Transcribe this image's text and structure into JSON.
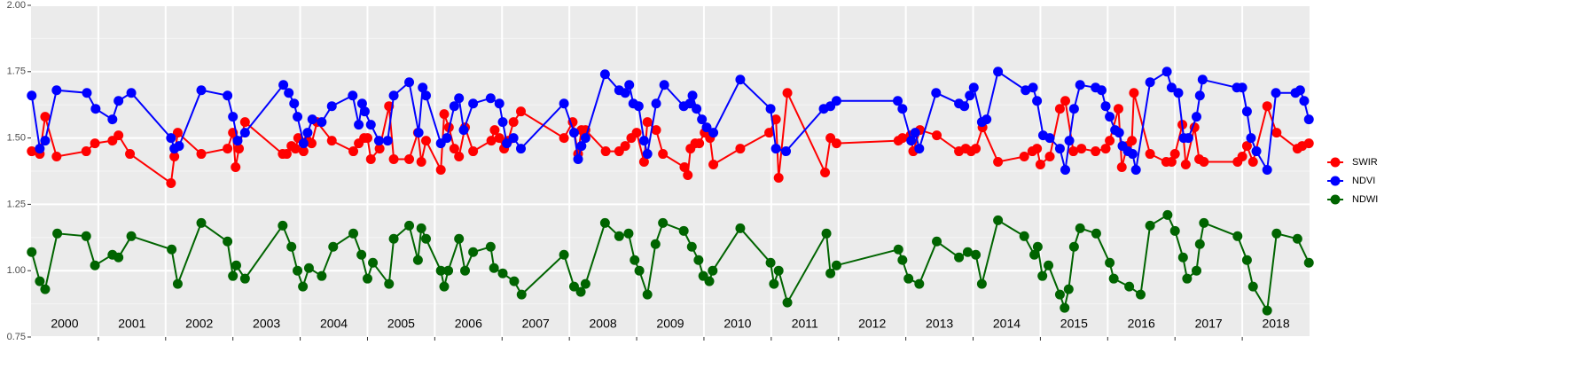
{
  "chart_data": {
    "type": "line",
    "categories": [
      "2000",
      "2001",
      "2002",
      "2003",
      "2004",
      "2005",
      "2006",
      "2007",
      "2008",
      "2009",
      "2010",
      "2011",
      "2012",
      "2013",
      "2014",
      "2015",
      "2016",
      "2017",
      "2018"
    ],
    "xlim": [
      2000,
      2019
    ],
    "xticks": [
      2001,
      2002,
      2003,
      2004,
      2005,
      2006,
      2007,
      2008,
      2009,
      2010,
      2011,
      2012,
      2013,
      2014,
      2015,
      2016,
      2017,
      2018
    ],
    "ylim": [
      0.75,
      2
    ],
    "yticks": [
      0.75,
      {
        "value": 1,
        "label": "1.00"
      },
      1.25,
      {
        "value": 1.5,
        "label": "1.50"
      },
      1.75,
      {
        "value": 2,
        "label": "2.00"
      }
    ],
    "grid": true,
    "legend": "right",
    "series": [
      {
        "name": "SWIR",
        "color": "#ff0000",
        "x": [
          2000.01,
          2000.13,
          2000.21,
          2000.38,
          2000.82,
          2000.95,
          2001.21,
          2001.3,
          2001.47,
          2002.08,
          2002.13,
          2002.18,
          2002.53,
          2002.92,
          2003.0,
          2003.04,
          2003.09,
          2003.18,
          2003.74,
          2003.8,
          2003.87,
          2003.93,
          2003.97,
          2004.05,
          2004.11,
          2004.17,
          2004.25,
          2004.47,
          2004.79,
          2004.87,
          2004.95,
          2005.0,
          2005.05,
          2005.18,
          2005.32,
          2005.39,
          2005.62,
          2005.75,
          2005.8,
          2005.87,
          2006.09,
          2006.14,
          2006.21,
          2006.29,
          2006.36,
          2006.45,
          2006.57,
          2006.84,
          2006.89,
          2006.96,
          2007.03,
          2007.09,
          2007.17,
          2007.28,
          2007.92,
          2008.05,
          2008.13,
          2008.18,
          2008.24,
          2008.54,
          2008.74,
          2008.83,
          2008.92,
          2009.0,
          2009.11,
          2009.16,
          2009.29,
          2009.39,
          2009.71,
          2009.76,
          2009.8,
          2009.87,
          2009.93,
          2010.01,
          2010.09,
          2010.14,
          2010.54,
          2010.97,
          2011.07,
          2011.11,
          2011.24,
          2011.8,
          2011.88,
          2011.97,
          2012.89,
          2012.95,
          2013.07,
          2013.11,
          2013.21,
          2013.46,
          2013.79,
          2013.89,
          2013.97,
          2014.04,
          2014.14,
          2014.37,
          2014.76,
          2014.88,
          2014.95,
          2015.0,
          2015.14,
          2015.29,
          2015.37,
          2015.49,
          2015.61,
          2015.82,
          2015.97,
          2016.03,
          2016.16,
          2016.21,
          2016.29,
          2016.36,
          2016.39,
          2016.63,
          2016.87,
          2016.95,
          2017.0,
          2017.11,
          2017.16,
          2017.29,
          2017.36,
          2017.43,
          2017.93,
          2018.0,
          2018.07,
          2018.16,
          2018.37,
          2018.51,
          2018.82,
          2018.89,
          2018.99
        ],
        "values": [
          1.45,
          1.44,
          1.58,
          1.43,
          1.45,
          1.48,
          1.49,
          1.51,
          1.44,
          1.33,
          1.43,
          1.52,
          1.44,
          1.46,
          1.52,
          1.39,
          1.46,
          1.56,
          1.44,
          1.44,
          1.47,
          1.46,
          1.5,
          1.45,
          1.49,
          1.48,
          1.56,
          1.49,
          1.45,
          1.48,
          1.5,
          1.5,
          1.42,
          1.46,
          1.62,
          1.42,
          1.42,
          1.52,
          1.41,
          1.49,
          1.38,
          1.59,
          1.54,
          1.46,
          1.43,
          1.54,
          1.45,
          1.49,
          1.53,
          1.5,
          1.46,
          1.49,
          1.56,
          1.6,
          1.5,
          1.56,
          1.44,
          1.53,
          1.53,
          1.45,
          1.45,
          1.47,
          1.5,
          1.52,
          1.41,
          1.56,
          1.53,
          1.44,
          1.39,
          1.36,
          1.46,
          1.48,
          1.48,
          1.52,
          1.5,
          1.4,
          1.46,
          1.52,
          1.57,
          1.35,
          1.67,
          1.37,
          1.5,
          1.48,
          1.49,
          1.5,
          1.51,
          1.45,
          1.53,
          1.51,
          1.45,
          1.46,
          1.45,
          1.46,
          1.54,
          1.41,
          1.43,
          1.45,
          1.46,
          1.4,
          1.43,
          1.61,
          1.64,
          1.45,
          1.46,
          1.45,
          1.46,
          1.49,
          1.61,
          1.39,
          1.47,
          1.49,
          1.67,
          1.44,
          1.41,
          1.41,
          1.44,
          1.55,
          1.4,
          1.54,
          1.42,
          1.41,
          1.41,
          1.43,
          1.47,
          1.41,
          1.62,
          1.52,
          1.46,
          1.47,
          1.48
        ]
      },
      {
        "name": "NDVI",
        "color": "#0000ff",
        "x": [
          2000.01,
          2000.13,
          2000.21,
          2000.38,
          2000.83,
          2000.96,
          2001.21,
          2001.3,
          2001.49,
          2002.08,
          2002.13,
          2002.2,
          2002.53,
          2002.92,
          2003.0,
          2003.07,
          2003.18,
          2003.75,
          2003.83,
          2003.91,
          2003.96,
          2004.05,
          2004.11,
          2004.18,
          2004.32,
          2004.47,
          2004.78,
          2004.87,
          2004.92,
          2004.96,
          2005.05,
          2005.17,
          2005.3,
          2005.39,
          2005.62,
          2005.76,
          2005.82,
          2005.87,
          2006.09,
          2006.18,
          2006.29,
          2006.36,
          2006.43,
          2006.57,
          2006.83,
          2006.96,
          2007.01,
          2007.07,
          2007.17,
          2007.28,
          2007.92,
          2008.07,
          2008.13,
          2008.18,
          2008.24,
          2008.53,
          2008.74,
          2008.83,
          2008.89,
          2008.95,
          2009.03,
          2009.11,
          2009.16,
          2009.29,
          2009.41,
          2009.7,
          2009.79,
          2009.83,
          2009.89,
          2009.97,
          2010.04,
          2010.14,
          2010.54,
          2010.99,
          2011.07,
          2011.22,
          2011.78,
          2011.88,
          2011.97,
          2012.88,
          2012.95,
          2013.08,
          2013.14,
          2013.2,
          2013.45,
          2013.79,
          2013.87,
          2013.95,
          2014.01,
          2014.13,
          2014.2,
          2014.37,
          2014.78,
          2014.89,
          2014.95,
          2015.04,
          2015.14,
          2015.29,
          2015.37,
          2015.43,
          2015.5,
          2015.59,
          2015.82,
          2015.91,
          2015.97,
          2016.03,
          2016.11,
          2016.17,
          2016.22,
          2016.3,
          2016.37,
          2016.42,
          2016.63,
          2016.88,
          2016.95,
          2017.05,
          2017.13,
          2017.2,
          2017.32,
          2017.37,
          2017.41,
          2017.92,
          2018.0,
          2018.07,
          2018.13,
          2018.21,
          2018.37,
          2018.5,
          2018.79,
          2018.86,
          2018.92,
          2018.99
        ],
        "values": [
          1.66,
          1.46,
          1.49,
          1.68,
          1.67,
          1.61,
          1.57,
          1.64,
          1.67,
          1.5,
          1.46,
          1.47,
          1.68,
          1.66,
          1.58,
          1.49,
          1.52,
          1.7,
          1.67,
          1.63,
          1.58,
          1.48,
          1.52,
          1.57,
          1.56,
          1.62,
          1.66,
          1.55,
          1.63,
          1.6,
          1.55,
          1.49,
          1.49,
          1.66,
          1.71,
          1.52,
          1.69,
          1.66,
          1.48,
          1.5,
          1.62,
          1.65,
          1.53,
          1.63,
          1.65,
          1.63,
          1.56,
          1.48,
          1.5,
          1.46,
          1.63,
          1.52,
          1.42,
          1.47,
          1.5,
          1.74,
          1.68,
          1.67,
          1.7,
          1.63,
          1.62,
          1.49,
          1.44,
          1.63,
          1.7,
          1.62,
          1.63,
          1.66,
          1.61,
          1.57,
          1.54,
          1.52,
          1.72,
          1.61,
          1.46,
          1.45,
          1.61,
          1.62,
          1.64,
          1.64,
          1.61,
          1.49,
          1.52,
          1.46,
          1.67,
          1.63,
          1.62,
          1.66,
          1.69,
          1.56,
          1.57,
          1.75,
          1.68,
          1.69,
          1.64,
          1.51,
          1.5,
          1.46,
          1.38,
          1.49,
          1.61,
          1.7,
          1.69,
          1.68,
          1.62,
          1.58,
          1.53,
          1.52,
          1.47,
          1.45,
          1.44,
          1.38,
          1.71,
          1.75,
          1.69,
          1.67,
          1.5,
          1.5,
          1.58,
          1.66,
          1.72,
          1.69,
          1.69,
          1.6,
          1.5,
          1.45,
          1.38,
          1.67,
          1.67,
          1.68,
          1.64,
          1.57
        ]
      },
      {
        "name": "NDWI",
        "color": "#006400",
        "x": [
          2000.01,
          2000.13,
          2000.21,
          2000.39,
          2000.82,
          2000.95,
          2001.21,
          2001.3,
          2001.49,
          2002.09,
          2002.18,
          2002.53,
          2002.92,
          2003.0,
          2003.05,
          2003.18,
          2003.74,
          2003.87,
          2003.96,
          2004.04,
          2004.13,
          2004.32,
          2004.49,
          2004.79,
          2004.91,
          2005.0,
          2005.08,
          2005.32,
          2005.39,
          2005.62,
          2005.75,
          2005.8,
          2005.87,
          2006.09,
          2006.14,
          2006.2,
          2006.36,
          2006.45,
          2006.57,
          2006.83,
          2006.88,
          2007.01,
          2007.18,
          2007.29,
          2007.92,
          2008.07,
          2008.17,
          2008.24,
          2008.53,
          2008.74,
          2008.88,
          2008.97,
          2009.04,
          2009.16,
          2009.28,
          2009.39,
          2009.7,
          2009.82,
          2009.92,
          2009.99,
          2010.08,
          2010.13,
          2010.54,
          2010.99,
          2011.04,
          2011.11,
          2011.24,
          2011.82,
          2011.88,
          2011.97,
          2012.89,
          2012.95,
          2013.04,
          2013.2,
          2013.46,
          2013.79,
          2013.92,
          2014.04,
          2014.13,
          2014.37,
          2014.76,
          2014.91,
          2014.96,
          2015.03,
          2015.12,
          2015.29,
          2015.36,
          2015.42,
          2015.5,
          2015.59,
          2015.83,
          2016.03,
          2016.09,
          2016.32,
          2016.49,
          2016.63,
          2016.89,
          2017.0,
          2017.12,
          2017.18,
          2017.32,
          2017.37,
          2017.43,
          2017.93,
          2018.07,
          2018.16,
          2018.37,
          2018.51,
          2018.82,
          2018.99
        ],
        "values": [
          1.07,
          0.96,
          0.93,
          1.14,
          1.13,
          1.02,
          1.06,
          1.05,
          1.13,
          1.08,
          0.95,
          1.18,
          1.11,
          0.98,
          1.02,
          0.97,
          1.17,
          1.09,
          1.0,
          0.94,
          1.01,
          0.98,
          1.09,
          1.14,
          1.06,
          0.97,
          1.03,
          0.95,
          1.12,
          1.17,
          1.04,
          1.16,
          1.12,
          1.0,
          0.94,
          1.0,
          1.12,
          1.0,
          1.07,
          1.09,
          1.01,
          0.99,
          0.96,
          0.91,
          1.06,
          0.94,
          0.92,
          0.95,
          1.18,
          1.13,
          1.14,
          1.04,
          1.0,
          0.91,
          1.1,
          1.18,
          1.15,
          1.09,
          1.04,
          0.98,
          0.96,
          1.0,
          1.16,
          1.03,
          0.95,
          1.0,
          0.88,
          1.14,
          0.99,
          1.02,
          1.08,
          1.04,
          0.97,
          0.95,
          1.11,
          1.05,
          1.07,
          1.06,
          0.95,
          1.19,
          1.13,
          1.06,
          1.09,
          0.98,
          1.02,
          0.91,
          0.86,
          0.93,
          1.09,
          1.16,
          1.14,
          1.03,
          0.97,
          0.94,
          0.91,
          1.17,
          1.21,
          1.15,
          1.05,
          0.97,
          1.0,
          1.1,
          1.18,
          1.13,
          1.04,
          0.94,
          0.85,
          1.14,
          1.12,
          1.03
        ]
      }
    ]
  }
}
